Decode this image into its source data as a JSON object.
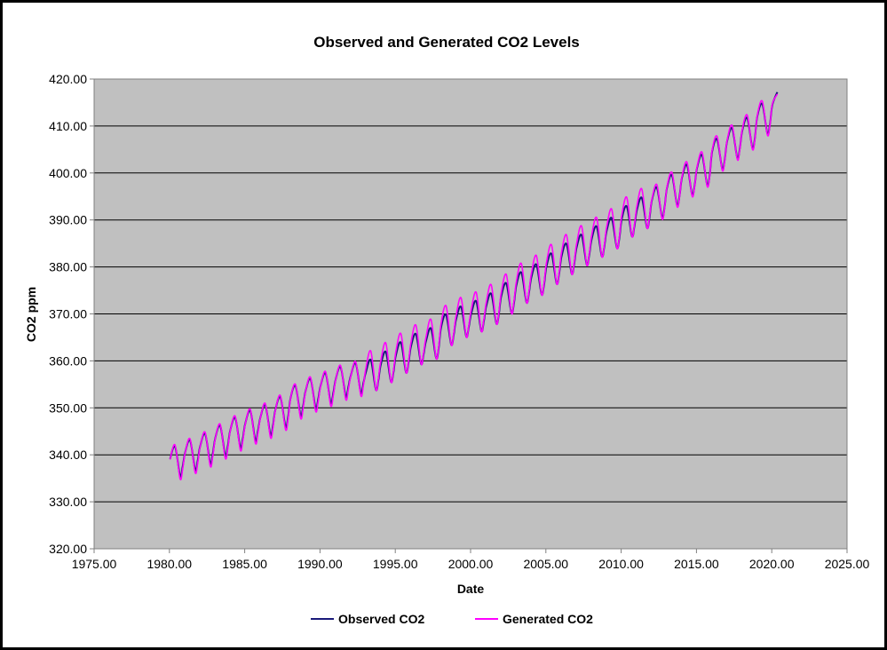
{
  "chart_data": {
    "type": "line",
    "title": "Observed and Generated CO2 Levels",
    "xlabel": "Date",
    "ylabel": "CO2 ppm",
    "xlim": [
      1975,
      2025
    ],
    "ylim": [
      320,
      420
    ],
    "xticks": [
      "1975.00",
      "1980.00",
      "1985.00",
      "1990.00",
      "1995.00",
      "2000.00",
      "2005.00",
      "2010.00",
      "2015.00",
      "2020.00",
      "2025.00"
    ],
    "yticks": [
      "320.00",
      "330.00",
      "340.00",
      "350.00",
      "360.00",
      "370.00",
      "380.00",
      "390.00",
      "400.00",
      "410.00",
      "420.00"
    ],
    "grid": "horizontal major",
    "plot_background": "#c0c0c0",
    "legend": "bottom",
    "x": [
      1980.04,
      1980.37,
      1980.71,
      1980.88,
      1981.04,
      1981.37,
      1981.71,
      1981.88,
      1982.04,
      1982.37,
      1982.71,
      1982.88,
      1983.04,
      1983.37,
      1983.71,
      1983.88,
      1984.04,
      1984.37,
      1984.71,
      1984.88,
      1985.04,
      1985.37,
      1985.71,
      1985.88,
      1986.04,
      1986.37,
      1986.71,
      1986.88,
      1987.04,
      1987.37,
      1987.71,
      1987.88,
      1988.04,
      1988.37,
      1988.71,
      1988.88,
      1989.04,
      1989.37,
      1989.71,
      1989.88,
      1990.04,
      1990.37,
      1990.71,
      1990.88,
      1991.04,
      1991.37,
      1991.71,
      1991.88,
      1992.04,
      1992.37,
      1992.71,
      1992.88,
      1993.04,
      1993.37,
      1993.71,
      1993.88,
      1994.04,
      1994.37,
      1994.71,
      1994.88,
      1995.04,
      1995.37,
      1995.71,
      1995.88,
      1996.04,
      1996.37,
      1996.71,
      1996.88,
      1997.04,
      1997.37,
      1997.71,
      1997.88,
      1998.04,
      1998.37,
      1998.71,
      1998.88,
      1999.04,
      1999.37,
      1999.71,
      1999.88,
      2000.04,
      2000.37,
      2000.71,
      2000.88,
      2001.04,
      2001.37,
      2001.71,
      2001.88,
      2002.04,
      2002.37,
      2002.71,
      2002.88,
      2003.04,
      2003.37,
      2003.71,
      2003.88,
      2004.04,
      2004.37,
      2004.71,
      2004.88,
      2005.04,
      2005.37,
      2005.71,
      2005.88,
      2006.04,
      2006.37,
      2006.71,
      2006.88,
      2007.04,
      2007.37,
      2007.71,
      2007.88,
      2008.04,
      2008.37,
      2008.71,
      2008.88,
      2009.04,
      2009.37,
      2009.71,
      2009.88,
      2010.04,
      2010.37,
      2010.71,
      2010.88,
      2011.04,
      2011.37,
      2011.71,
      2011.88,
      2012.04,
      2012.37,
      2012.71,
      2012.88,
      2013.04,
      2013.37,
      2013.71,
      2013.88,
      2014.04,
      2014.37,
      2014.71,
      2014.88,
      2015.04,
      2015.37,
      2015.71,
      2015.88,
      2016.04,
      2016.37,
      2016.71,
      2016.88,
      2017.04,
      2017.37,
      2017.71,
      2017.88,
      2018.04,
      2018.37,
      2018.71,
      2018.88,
      2019.04,
      2019.37,
      2019.71,
      2019.88,
      2020.04,
      2020.37
    ],
    "series": [
      {
        "name": "Observed CO2",
        "color": "#1a1a7a",
        "values": [
          339.1,
          341.8,
          335.5,
          337.5,
          340.4,
          343.1,
          336.8,
          338.8,
          341.8,
          344.5,
          338.2,
          340.2,
          343.5,
          346.2,
          339.9,
          341.9,
          345.2,
          347.9,
          341.6,
          343.6,
          346.7,
          349.4,
          343.1,
          345.1,
          347.9,
          350.6,
          344.3,
          346.3,
          349.6,
          352.3,
          346.0,
          348.0,
          352.0,
          354.7,
          348.4,
          350.4,
          353.5,
          356.2,
          349.9,
          351.9,
          354.7,
          357.4,
          351.1,
          353.1,
          356.0,
          358.7,
          352.4,
          354.4,
          356.8,
          359.5,
          353.2,
          355.2,
          357.5,
          360.2,
          353.9,
          355.9,
          359.2,
          361.9,
          355.6,
          357.6,
          361.2,
          363.9,
          357.6,
          359.6,
          363.0,
          365.7,
          359.4,
          361.4,
          364.2,
          366.9,
          360.6,
          362.6,
          367.1,
          369.8,
          363.5,
          365.5,
          368.8,
          371.5,
          365.2,
          367.2,
          370.0,
          372.7,
          366.4,
          368.4,
          371.6,
          374.3,
          368.0,
          370.0,
          373.8,
          376.5,
          370.2,
          372.2,
          376.1,
          378.8,
          372.5,
          374.5,
          377.8,
          380.5,
          374.2,
          376.2,
          380.1,
          382.8,
          376.5,
          378.5,
          382.2,
          384.9,
          378.6,
          380.6,
          384.1,
          386.8,
          380.5,
          382.5,
          385.9,
          388.6,
          382.3,
          384.3,
          387.7,
          390.4,
          384.1,
          386.1,
          390.2,
          392.9,
          386.6,
          388.6,
          392.0,
          394.7,
          388.4,
          390.4,
          394.2,
          396.9,
          390.6,
          392.6,
          396.8,
          399.5,
          393.2,
          395.2,
          399.0,
          401.7,
          395.4,
          397.4,
          401.1,
          403.8,
          397.5,
          399.5,
          404.5,
          407.2,
          400.9,
          402.9,
          406.8,
          409.5,
          403.2,
          405.2,
          409.0,
          411.7,
          405.4,
          407.4,
          412.0,
          414.7,
          408.4,
          410.4,
          414.5,
          417.2
        ]
      },
      {
        "name": "Generated CO2",
        "color": "#ff00ff",
        "values": [
          339.0,
          342.1,
          334.9,
          337.0,
          340.3,
          343.4,
          336.2,
          338.3,
          341.7,
          344.8,
          337.6,
          339.7,
          343.4,
          346.5,
          339.3,
          341.4,
          345.1,
          348.2,
          341.0,
          343.1,
          346.6,
          349.7,
          342.5,
          344.6,
          347.8,
          350.9,
          343.7,
          345.8,
          349.5,
          352.6,
          345.4,
          347.5,
          351.9,
          355.0,
          347.8,
          349.9,
          353.4,
          356.5,
          349.3,
          351.4,
          354.6,
          357.7,
          350.5,
          352.6,
          355.9,
          359.0,
          351.8,
          353.9,
          356.7,
          359.8,
          352.6,
          354.7,
          358.3,
          362.1,
          353.9,
          356.2,
          360.0,
          363.8,
          355.6,
          357.9,
          362.0,
          365.8,
          357.6,
          359.9,
          363.8,
          367.6,
          359.4,
          361.7,
          365.0,
          368.8,
          360.6,
          362.9,
          367.9,
          371.7,
          363.5,
          365.8,
          369.6,
          373.4,
          365.2,
          367.5,
          370.8,
          374.6,
          366.4,
          368.7,
          372.4,
          376.2,
          368.0,
          370.3,
          374.6,
          378.4,
          370.2,
          372.5,
          376.9,
          380.7,
          372.5,
          374.8,
          378.6,
          382.4,
          374.2,
          376.5,
          380.9,
          384.7,
          376.5,
          378.8,
          383.0,
          386.8,
          378.6,
          380.9,
          384.9,
          388.7,
          380.5,
          382.8,
          386.7,
          390.5,
          382.3,
          384.6,
          388.5,
          392.3,
          384.1,
          386.4,
          391.0,
          394.8,
          386.6,
          388.9,
          392.8,
          396.6,
          388.4,
          390.7,
          394.4,
          397.5,
          390.3,
          392.4,
          397.0,
          400.1,
          392.9,
          395.0,
          399.2,
          402.3,
          395.1,
          397.2,
          401.3,
          404.4,
          397.2,
          399.3,
          404.7,
          407.8,
          400.6,
          402.7,
          407.0,
          410.1,
          402.9,
          405.0,
          409.2,
          412.3,
          405.1,
          407.2,
          412.2,
          415.3,
          408.1,
          410.2,
          414.7,
          416.8
        ]
      }
    ]
  }
}
